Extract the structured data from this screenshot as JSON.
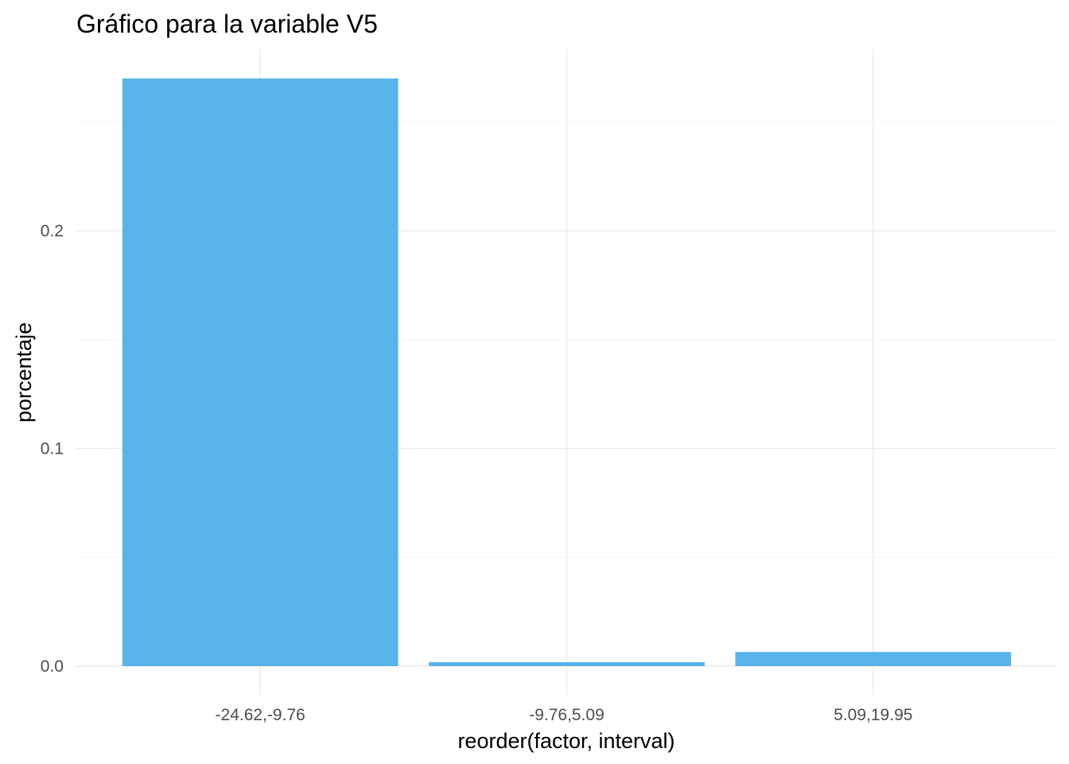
{
  "chart_data": {
    "type": "bar",
    "title": "Gráfico para la variable  V5",
    "xlabel": "reorder(factor, interval)",
    "ylabel": "porcentaje",
    "categories": [
      "-24.62,-9.76",
      "-9.76,5.09",
      "5.09,19.95"
    ],
    "values": [
      0.27,
      0.0018,
      0.0065
    ],
    "ylim": [
      0,
      0.27
    ],
    "yticks": [
      0.0,
      0.1,
      0.2
    ],
    "ytick_labels": [
      "0.0",
      "0.1",
      "0.2"
    ],
    "grid": true,
    "bar_color": "#56B4E9"
  }
}
